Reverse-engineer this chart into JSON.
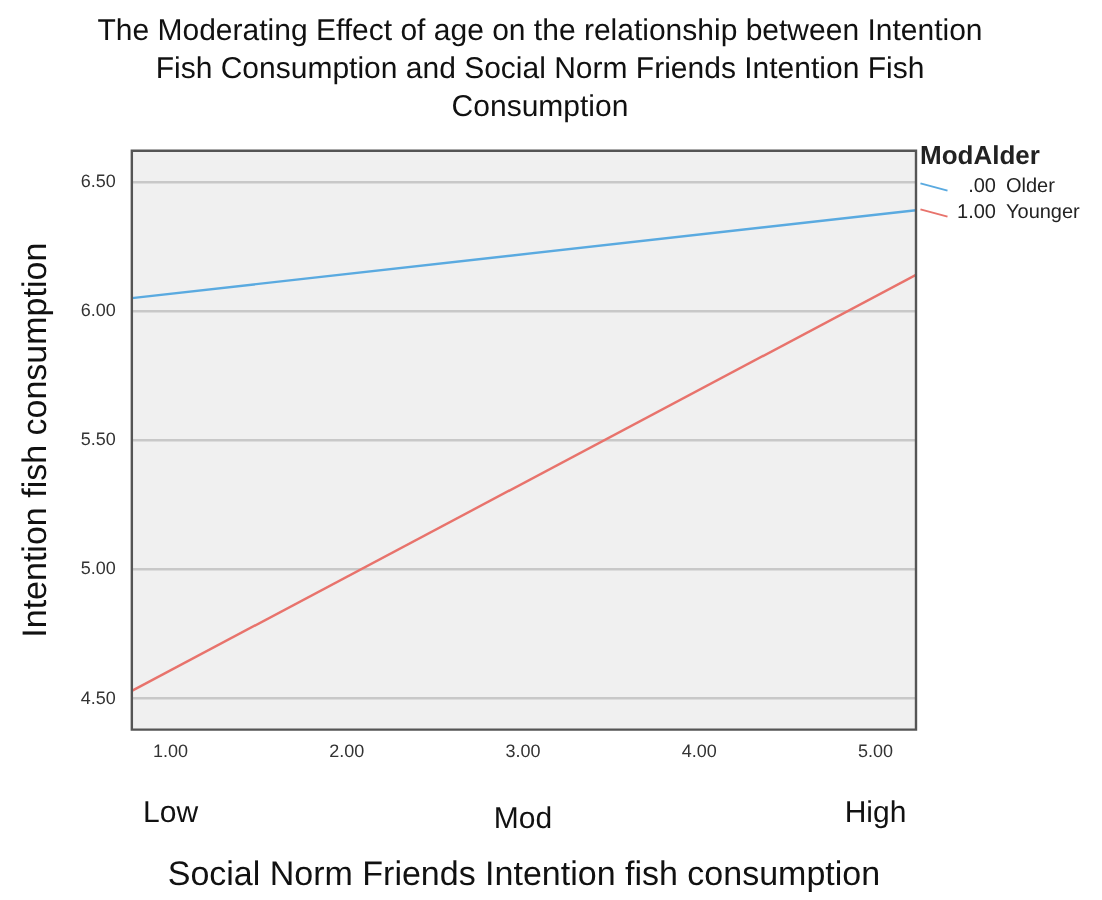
{
  "chart_data": {
    "type": "line",
    "title": "The Moderating Effect of age on the relationship between Intention Fish Consumption and Social Norm Friends Intention Fish Consumption",
    "xlabel": "Social Norm Friends Intention fish consumption",
    "ylabel": "Intention fish consumption",
    "legend_title": "ModAlder",
    "x": [
      0.78,
      5.23
    ],
    "series": [
      {
        "name": ".00",
        "color": "#5aaae0",
        "values": [
          6.05,
          6.39
        ]
      },
      {
        "name": "1.00",
        "color": "#e8736c",
        "values": [
          4.53,
          6.14
        ]
      }
    ],
    "xlim": [
      0.78,
      5.23
    ],
    "xticks": [
      {
        "value": 1,
        "label": "1.00"
      },
      {
        "value": 2,
        "label": "2.00"
      },
      {
        "value": 3,
        "label": "3.00"
      },
      {
        "value": 4,
        "label": "4.00"
      },
      {
        "value": 5,
        "label": "5.00"
      }
    ],
    "ylim": [
      4.38,
      6.62
    ],
    "yticks": [
      {
        "value": 4.5,
        "label": "4.50"
      },
      {
        "value": 5,
        "label": "5.00"
      },
      {
        "value": 5.5,
        "label": "5.50"
      },
      {
        "value": 6,
        "label": "6.00"
      },
      {
        "value": 6.5,
        "label": "6.50"
      }
    ],
    "grid": "y",
    "legend": "top right",
    "marker": "none",
    "line_style": "solid",
    "annotations": [
      "Older",
      "Younger",
      "Low",
      "Mod",
      "High"
    ]
  }
}
